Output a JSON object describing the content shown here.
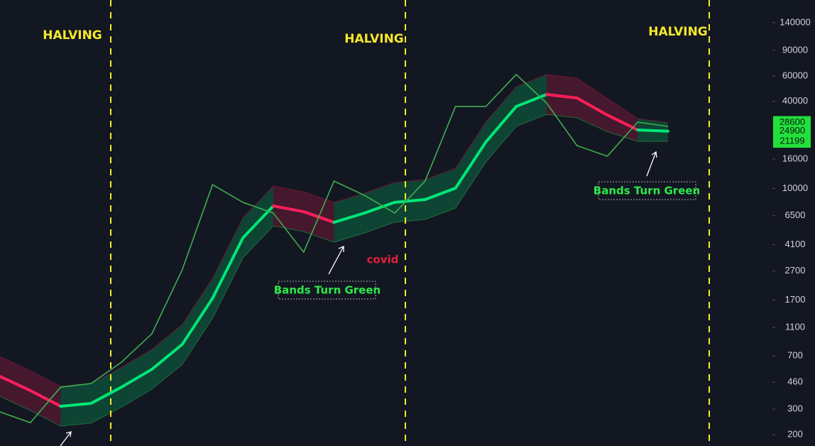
{
  "chart_data": {
    "type": "line",
    "log_scale": true,
    "annotations": [
      "HALVING",
      "HALVING",
      "HALVING",
      "Bands Turn Green",
      "Bands Turn Green",
      "covid"
    ],
    "categories": [
      null,
      null,
      null,
      null,
      null,
      null,
      null,
      null,
      null,
      null,
      null,
      null,
      null,
      null,
      null,
      null,
      null,
      null,
      null,
      null,
      null,
      null,
      null
    ],
    "series": [
      {
        "color": "#3fae4f",
        "values": [
          287,
          242,
          426,
          451,
          633,
          994,
          2748,
          10640,
          8036,
          6776,
          3640,
          11270,
          8994,
          6776,
          11270,
          36900,
          36900,
          61360,
          39000,
          19820,
          16740,
          28780,
          26880
        ]
      },
      {
        "color": "#6a1730",
        "values": [
          693,
          553,
          431,
          451,
          584,
          775,
          1152,
          2401,
          6270,
          10410,
          9510,
          8030,
          9300,
          11030,
          11520,
          13820,
          28790,
          50630,
          61300,
          57980,
          41890,
          30500,
          28600
        ]
      },
      {
        "color": "#00e676",
        "values": [
          505,
          403,
          314,
          329,
          426,
          565,
          840,
          1750,
          4570,
          7590,
          6930,
          5850,
          6780,
          8040,
          8400,
          10070,
          20980,
          36900,
          44680,
          42260,
          32220,
          25420,
          24900
        ],
        "segment_colors": [
          "#ff1f5a",
          "#ff1f5a",
          "#00e676",
          "#00e676",
          "#00e676",
          "#00e676",
          "#00e676",
          "#00e676",
          "#00e676",
          "#ff1f5a",
          "#ff1f5a",
          "#00e676",
          "#00e676",
          "#00e676",
          "#00e676",
          "#00e676",
          "#00e676",
          "#00e676",
          "#ff1f5a",
          "#ff1f5a",
          "#ff1f5a",
          "#00e676"
        ]
      },
      {
        "color": "#1f6e3a",
        "values": [
          368,
          294,
          229,
          240,
          310,
          412,
          612,
          1276,
          3331,
          5532,
          5051,
          4264,
          4942,
          5860,
          6122,
          7340,
          15290,
          26890,
          32570,
          30800,
          24780,
          21180,
          21199
        ]
      }
    ],
    "ylim": [
      167,
      200600
    ],
    "yticks": [
      140000,
      90000,
      60000,
      40000,
      16000,
      10000,
      6500,
      4100,
      2700,
      1700,
      1100,
      700,
      460,
      300,
      200
    ],
    "badge_color": "#22e03c"
  }
}
